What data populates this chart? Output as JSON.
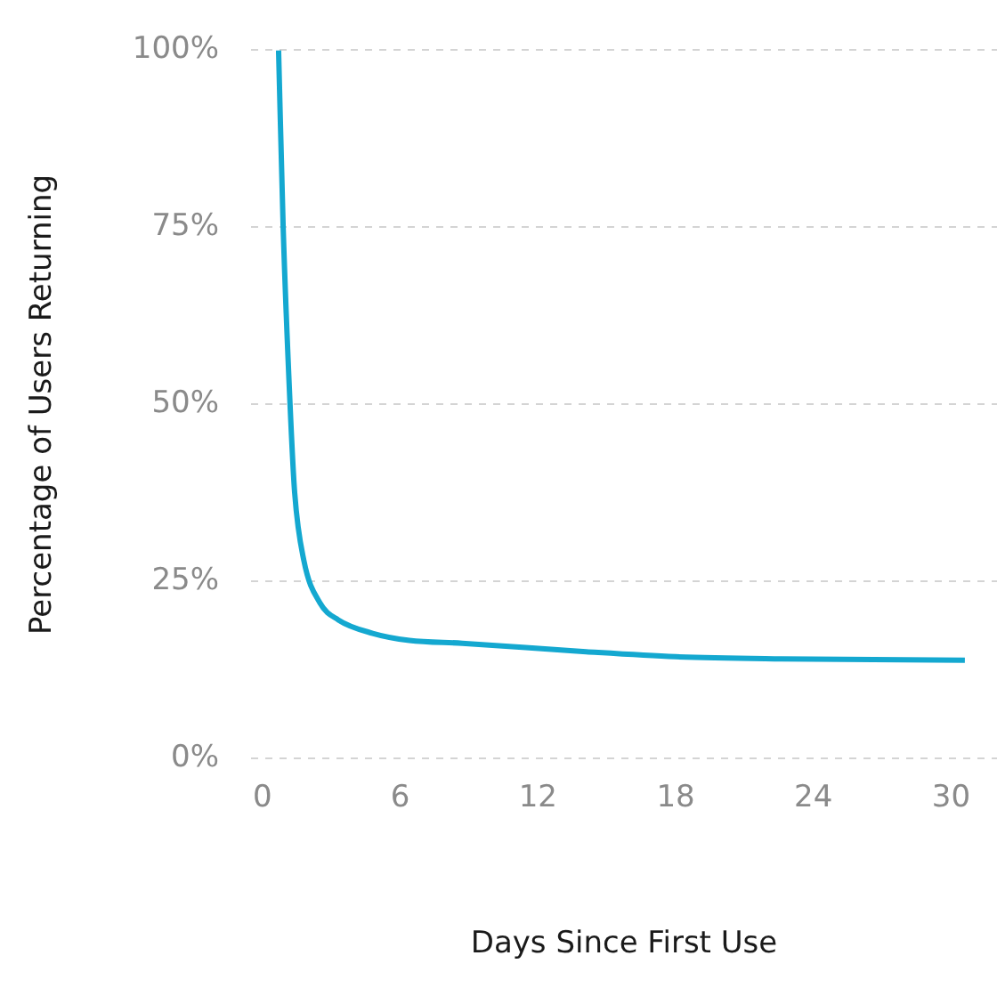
{
  "chart_data": {
    "type": "line",
    "xlabel": "Days Since First Use",
    "ylabel": "Percentage of Users Returning",
    "x": [
      0.7,
      0.9,
      1.2,
      1.4,
      1.8,
      2.5,
      3.3,
      4.8,
      6.4,
      8.7,
      14.1,
      18,
      22.6,
      30.6
    ],
    "series": [
      {
        "color": "#14a8d0",
        "values": [
          100,
          75,
          50,
          37.6,
          28,
          22,
          19.6,
          17.7,
          16.7,
          16.3,
          15.1,
          14.4,
          14.1,
          13.9
        ]
      }
    ],
    "xlim": [
      -0.5,
      32
    ],
    "xticks": [
      0,
      6,
      12,
      18,
      24,
      30
    ],
    "ylim": [
      0,
      100
    ],
    "yticks": [
      {
        "value": 0,
        "label": "0%"
      },
      {
        "value": 25,
        "label": "25%"
      },
      {
        "value": 50,
        "label": "50%"
      },
      {
        "value": 75,
        "label": "75%"
      },
      {
        "value": 100,
        "label": "100%"
      }
    ],
    "grid": "y",
    "legend": false,
    "marker": "none",
    "line_style": "solid"
  }
}
